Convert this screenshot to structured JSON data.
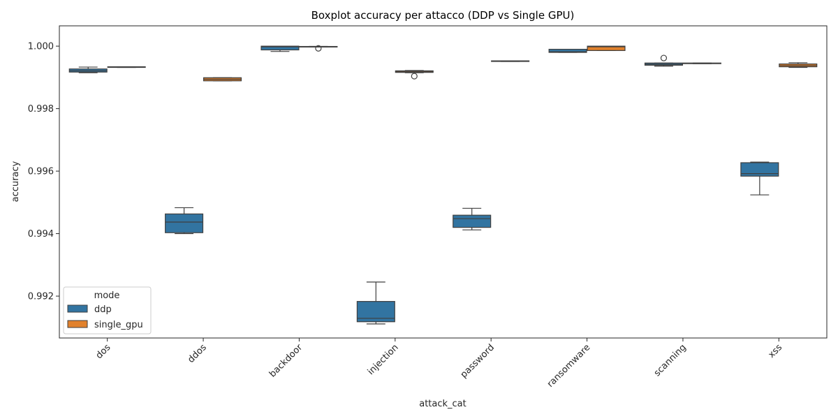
{
  "chart_data": {
    "type": "boxplot",
    "title": "Boxplot accuracy per attacco (DDP vs Single GPU)",
    "xlabel": "attack_cat",
    "ylabel": "accuracy",
    "categories": [
      "dos",
      "ddos",
      "backdoor",
      "injection",
      "password",
      "ransomware",
      "scanning",
      "xss"
    ],
    "ylim": [
      0.99066,
      1.00065
    ],
    "yticks": [
      0.992,
      0.994,
      0.996,
      0.998,
      1.0
    ],
    "ytick_labels": [
      "0.992",
      "0.994",
      "0.996",
      "0.998",
      "1.000"
    ],
    "grid": false,
    "legend": {
      "title": "mode",
      "placement": "lower-left",
      "entries": [
        "ddp",
        "single_gpu"
      ]
    },
    "series": [
      {
        "name": "ddp",
        "color": "#3274a1",
        "boxes": [
          {
            "category": "dos",
            "whislo": 0.99915,
            "q1": 0.99917,
            "median": 0.99921,
            "q3": 0.99927,
            "whishi": 0.99933,
            "outliers": []
          },
          {
            "category": "ddos",
            "whislo": 0.994,
            "q1": 0.99403,
            "median": 0.99437,
            "q3": 0.99463,
            "whishi": 0.99483,
            "outliers": []
          },
          {
            "category": "backdoor",
            "whislo": 0.99983,
            "q1": 0.99988,
            "median": 0.99998,
            "q3": 1.0,
            "whishi": 1.0,
            "outliers": []
          },
          {
            "category": "injection",
            "whislo": 0.99111,
            "q1": 0.99118,
            "median": 0.99129,
            "q3": 0.99183,
            "whishi": 0.99245,
            "outliers": []
          },
          {
            "category": "password",
            "whislo": 0.99412,
            "q1": 0.9942,
            "median": 0.99448,
            "q3": 0.99459,
            "whishi": 0.99481,
            "outliers": []
          },
          {
            "category": "ransomware",
            "whislo": 0.9998,
            "q1": 0.9998,
            "median": 0.99982,
            "q3": 0.9999,
            "whishi": 0.9999,
            "outliers": []
          },
          {
            "category": "scanning",
            "whislo": 0.99936,
            "q1": 0.99939,
            "median": 0.99942,
            "q3": 0.99946,
            "whishi": 0.99946,
            "outliers": [
              0.99962
            ]
          },
          {
            "category": "xss",
            "whislo": 0.99524,
            "q1": 0.99584,
            "median": 0.99592,
            "q3": 0.99627,
            "whishi": 0.99629,
            "outliers": []
          }
        ]
      },
      {
        "name": "single_gpu",
        "color": "#e1812c",
        "boxes": [
          {
            "category": "dos",
            "whislo": 0.99932,
            "q1": 0.99932,
            "median": 0.99933,
            "q3": 0.99934,
            "whishi": 0.99934,
            "outliers": []
          },
          {
            "category": "ddos",
            "whislo": 0.99889,
            "q1": 0.99889,
            "median": 0.99894,
            "q3": 0.99899,
            "whishi": 0.99899,
            "outliers": []
          },
          {
            "category": "backdoor",
            "whislo": 0.99998,
            "q1": 0.99998,
            "median": 0.99998,
            "q3": 0.99999,
            "whishi": 0.99999,
            "outliers": [
              0.99993
            ]
          },
          {
            "category": "injection",
            "whislo": 0.99915,
            "q1": 0.99916,
            "median": 0.99918,
            "q3": 0.99921,
            "whishi": 0.99922,
            "outliers": [
              0.99904
            ]
          },
          {
            "category": "password",
            "whislo": 0.99951,
            "q1": 0.99951,
            "median": 0.99952,
            "q3": 0.99953,
            "whishi": 0.99953,
            "outliers": []
          },
          {
            "category": "ransomware",
            "whislo": 0.99986,
            "q1": 0.99986,
            "median": 0.99998,
            "q3": 1.0,
            "whishi": 1.0,
            "outliers": []
          },
          {
            "category": "scanning",
            "whislo": 0.99944,
            "q1": 0.99944,
            "median": 0.99945,
            "q3": 0.99946,
            "whishi": 0.99946,
            "outliers": []
          },
          {
            "category": "xss",
            "whislo": 0.99932,
            "q1": 0.99934,
            "median": 0.99938,
            "q3": 0.99943,
            "whishi": 0.99947,
            "outliers": []
          }
        ]
      }
    ]
  }
}
